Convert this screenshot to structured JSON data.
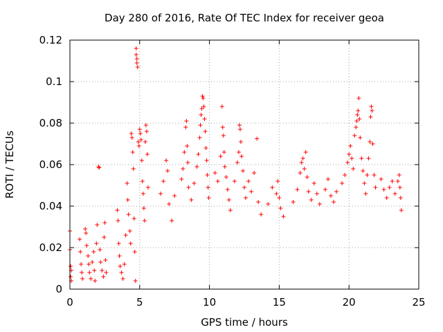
{
  "chart_data": {
    "type": "scatter",
    "title": "Day 280 of 2016, Rate Of TEC Index for receiver geoa",
    "xlabel": "GPS time / hours",
    "ylabel": "ROTI / TECUs",
    "xlim": [
      0,
      25
    ],
    "ylim": [
      0,
      0.12
    ],
    "xticks": [
      0,
      5,
      10,
      15,
      20,
      25
    ],
    "xtick_labels": [
      "0",
      "5",
      "10",
      "15",
      "20",
      "25"
    ],
    "yticks": [
      0,
      0.02,
      0.04,
      0.06,
      0.08,
      0.1,
      0.12
    ],
    "ytick_labels": [
      "0",
      "0.02",
      "0.04",
      "0.06",
      "0.08",
      "0.1",
      "0.12"
    ],
    "grid": true,
    "marker": "plus",
    "color": "#ff0000",
    "series": [
      {
        "name": "ROTI",
        "points": [
          [
            0.0,
            0.028
          ],
          [
            0.0,
            0.019
          ],
          [
            0.05,
            0.011
          ],
          [
            0.05,
            0.006
          ],
          [
            0.1,
            0.004
          ],
          [
            0.1,
            0.009
          ],
          [
            0.7,
            0.024
          ],
          [
            0.75,
            0.018
          ],
          [
            0.8,
            0.012
          ],
          [
            0.85,
            0.008
          ],
          [
            0.9,
            0.005
          ],
          [
            1.1,
            0.029
          ],
          [
            1.15,
            0.027
          ],
          [
            1.2,
            0.021
          ],
          [
            1.3,
            0.016
          ],
          [
            1.35,
            0.012
          ],
          [
            1.4,
            0.008
          ],
          [
            1.5,
            0.005
          ],
          [
            1.6,
            0.013
          ],
          [
            1.7,
            0.018
          ],
          [
            1.75,
            0.009
          ],
          [
            1.8,
            0.004
          ],
          [
            1.9,
            0.022
          ],
          [
            1.95,
            0.031
          ],
          [
            2.05,
            0.059
          ],
          [
            2.1,
            0.0585
          ],
          [
            2.15,
            0.019
          ],
          [
            2.2,
            0.013
          ],
          [
            2.3,
            0.009
          ],
          [
            2.4,
            0.006
          ],
          [
            2.45,
            0.025
          ],
          [
            2.5,
            0.032
          ],
          [
            2.55,
            0.014
          ],
          [
            2.6,
            0.008
          ],
          [
            3.4,
            0.038
          ],
          [
            3.45,
            0.033
          ],
          [
            3.5,
            0.022
          ],
          [
            3.55,
            0.016
          ],
          [
            3.6,
            0.011
          ],
          [
            3.7,
            0.008
          ],
          [
            3.8,
            0.005
          ],
          [
            3.9,
            0.012
          ],
          [
            4.0,
            0.026
          ],
          [
            4.1,
            0.051
          ],
          [
            4.15,
            0.043
          ],
          [
            4.2,
            0.036
          ],
          [
            4.3,
            0.028
          ],
          [
            4.35,
            0.022
          ],
          [
            4.4,
            0.075
          ],
          [
            4.45,
            0.073
          ],
          [
            4.5,
            0.066
          ],
          [
            4.55,
            0.058
          ],
          [
            4.6,
            0.034
          ],
          [
            4.65,
            0.018
          ],
          [
            4.7,
            0.004
          ],
          [
            4.75,
            0.116
          ],
          [
            4.75,
            0.113
          ],
          [
            4.8,
            0.111
          ],
          [
            4.8,
            0.109
          ],
          [
            4.85,
            0.107
          ],
          [
            4.9,
            0.071
          ],
          [
            4.95,
            0.069
          ],
          [
            5.0,
            0.077
          ],
          [
            5.05,
            0.075
          ],
          [
            5.1,
            0.072
          ],
          [
            5.15,
            0.062
          ],
          [
            5.2,
            0.052
          ],
          [
            5.25,
            0.046
          ],
          [
            5.3,
            0.039
          ],
          [
            5.35,
            0.033
          ],
          [
            5.4,
            0.071
          ],
          [
            5.45,
            0.079
          ],
          [
            5.5,
            0.076
          ],
          [
            5.55,
            0.065
          ],
          [
            5.6,
            0.049
          ],
          [
            6.5,
            0.046
          ],
          [
            6.7,
            0.052
          ],
          [
            6.9,
            0.062
          ],
          [
            7.0,
            0.057
          ],
          [
            7.1,
            0.041
          ],
          [
            7.3,
            0.033
          ],
          [
            7.5,
            0.045
          ],
          [
            8.0,
            0.053
          ],
          [
            8.1,
            0.058
          ],
          [
            8.2,
            0.066
          ],
          [
            8.3,
            0.078
          ],
          [
            8.35,
            0.081
          ],
          [
            8.4,
            0.069
          ],
          [
            8.45,
            0.061
          ],
          [
            8.5,
            0.049
          ],
          [
            8.7,
            0.043
          ],
          [
            8.9,
            0.051
          ],
          [
            9.1,
            0.059
          ],
          [
            9.2,
            0.065
          ],
          [
            9.3,
            0.073
          ],
          [
            9.35,
            0.079
          ],
          [
            9.4,
            0.084
          ],
          [
            9.45,
            0.087
          ],
          [
            9.5,
            0.093
          ],
          [
            9.55,
            0.092
          ],
          [
            9.6,
            0.088
          ],
          [
            9.65,
            0.082
          ],
          [
            9.7,
            0.076
          ],
          [
            9.75,
            0.068
          ],
          [
            9.8,
            0.062
          ],
          [
            9.85,
            0.055
          ],
          [
            9.9,
            0.049
          ],
          [
            9.95,
            0.044
          ],
          [
            10.4,
            0.056
          ],
          [
            10.6,
            0.052
          ],
          [
            10.8,
            0.064
          ],
          [
            10.9,
            0.088
          ],
          [
            10.95,
            0.078
          ],
          [
            11.0,
            0.074
          ],
          [
            11.05,
            0.066
          ],
          [
            11.1,
            0.059
          ],
          [
            11.2,
            0.054
          ],
          [
            11.3,
            0.048
          ],
          [
            11.4,
            0.043
          ],
          [
            11.5,
            0.038
          ],
          [
            11.8,
            0.052
          ],
          [
            12.0,
            0.061
          ],
          [
            12.1,
            0.066
          ],
          [
            12.15,
            0.079
          ],
          [
            12.2,
            0.077
          ],
          [
            12.25,
            0.071
          ],
          [
            12.3,
            0.064
          ],
          [
            12.4,
            0.057
          ],
          [
            12.5,
            0.049
          ],
          [
            12.6,
            0.044
          ],
          [
            12.8,
            0.052
          ],
          [
            13.0,
            0.047
          ],
          [
            13.2,
            0.056
          ],
          [
            13.4,
            0.0725
          ],
          [
            13.5,
            0.042
          ],
          [
            13.7,
            0.036
          ],
          [
            14.2,
            0.041
          ],
          [
            14.5,
            0.049
          ],
          [
            14.8,
            0.046
          ],
          [
            14.9,
            0.052
          ],
          [
            15.0,
            0.044
          ],
          [
            15.1,
            0.039
          ],
          [
            15.3,
            0.035
          ],
          [
            16.0,
            0.042
          ],
          [
            16.3,
            0.048
          ],
          [
            16.5,
            0.056
          ],
          [
            16.6,
            0.061
          ],
          [
            16.7,
            0.063
          ],
          [
            16.8,
            0.058
          ],
          [
            16.9,
            0.066
          ],
          [
            17.0,
            0.054
          ],
          [
            17.1,
            0.047
          ],
          [
            17.3,
            0.043
          ],
          [
            17.5,
            0.051
          ],
          [
            17.7,
            0.046
          ],
          [
            17.9,
            0.041
          ],
          [
            18.3,
            0.048
          ],
          [
            18.5,
            0.053
          ],
          [
            18.7,
            0.045
          ],
          [
            18.9,
            0.042
          ],
          [
            19.1,
            0.047
          ],
          [
            19.5,
            0.051
          ],
          [
            19.7,
            0.055
          ],
          [
            19.9,
            0.061
          ],
          [
            20.0,
            0.065
          ],
          [
            20.1,
            0.069
          ],
          [
            20.2,
            0.063
          ],
          [
            20.3,
            0.058
          ],
          [
            20.4,
            0.074
          ],
          [
            20.5,
            0.078
          ],
          [
            20.55,
            0.081
          ],
          [
            20.6,
            0.084
          ],
          [
            20.65,
            0.086
          ],
          [
            20.7,
            0.092
          ],
          [
            20.75,
            0.082
          ],
          [
            20.8,
            0.073
          ],
          [
            20.9,
            0.063
          ],
          [
            21.0,
            0.057
          ],
          [
            21.1,
            0.051
          ],
          [
            21.2,
            0.046
          ],
          [
            21.3,
            0.055
          ],
          [
            21.4,
            0.063
          ],
          [
            21.5,
            0.071
          ],
          [
            21.55,
            0.083
          ],
          [
            21.6,
            0.088
          ],
          [
            21.65,
            0.086
          ],
          [
            21.7,
            0.07
          ],
          [
            21.8,
            0.055
          ],
          [
            21.9,
            0.049
          ],
          [
            22.3,
            0.053
          ],
          [
            22.5,
            0.048
          ],
          [
            22.7,
            0.044
          ],
          [
            22.9,
            0.049
          ],
          [
            23.1,
            0.052
          ],
          [
            23.3,
            0.046
          ],
          [
            23.5,
            0.052
          ],
          [
            23.6,
            0.055
          ],
          [
            23.65,
            0.049
          ],
          [
            23.7,
            0.044
          ],
          [
            23.75,
            0.038
          ]
        ]
      }
    ]
  }
}
